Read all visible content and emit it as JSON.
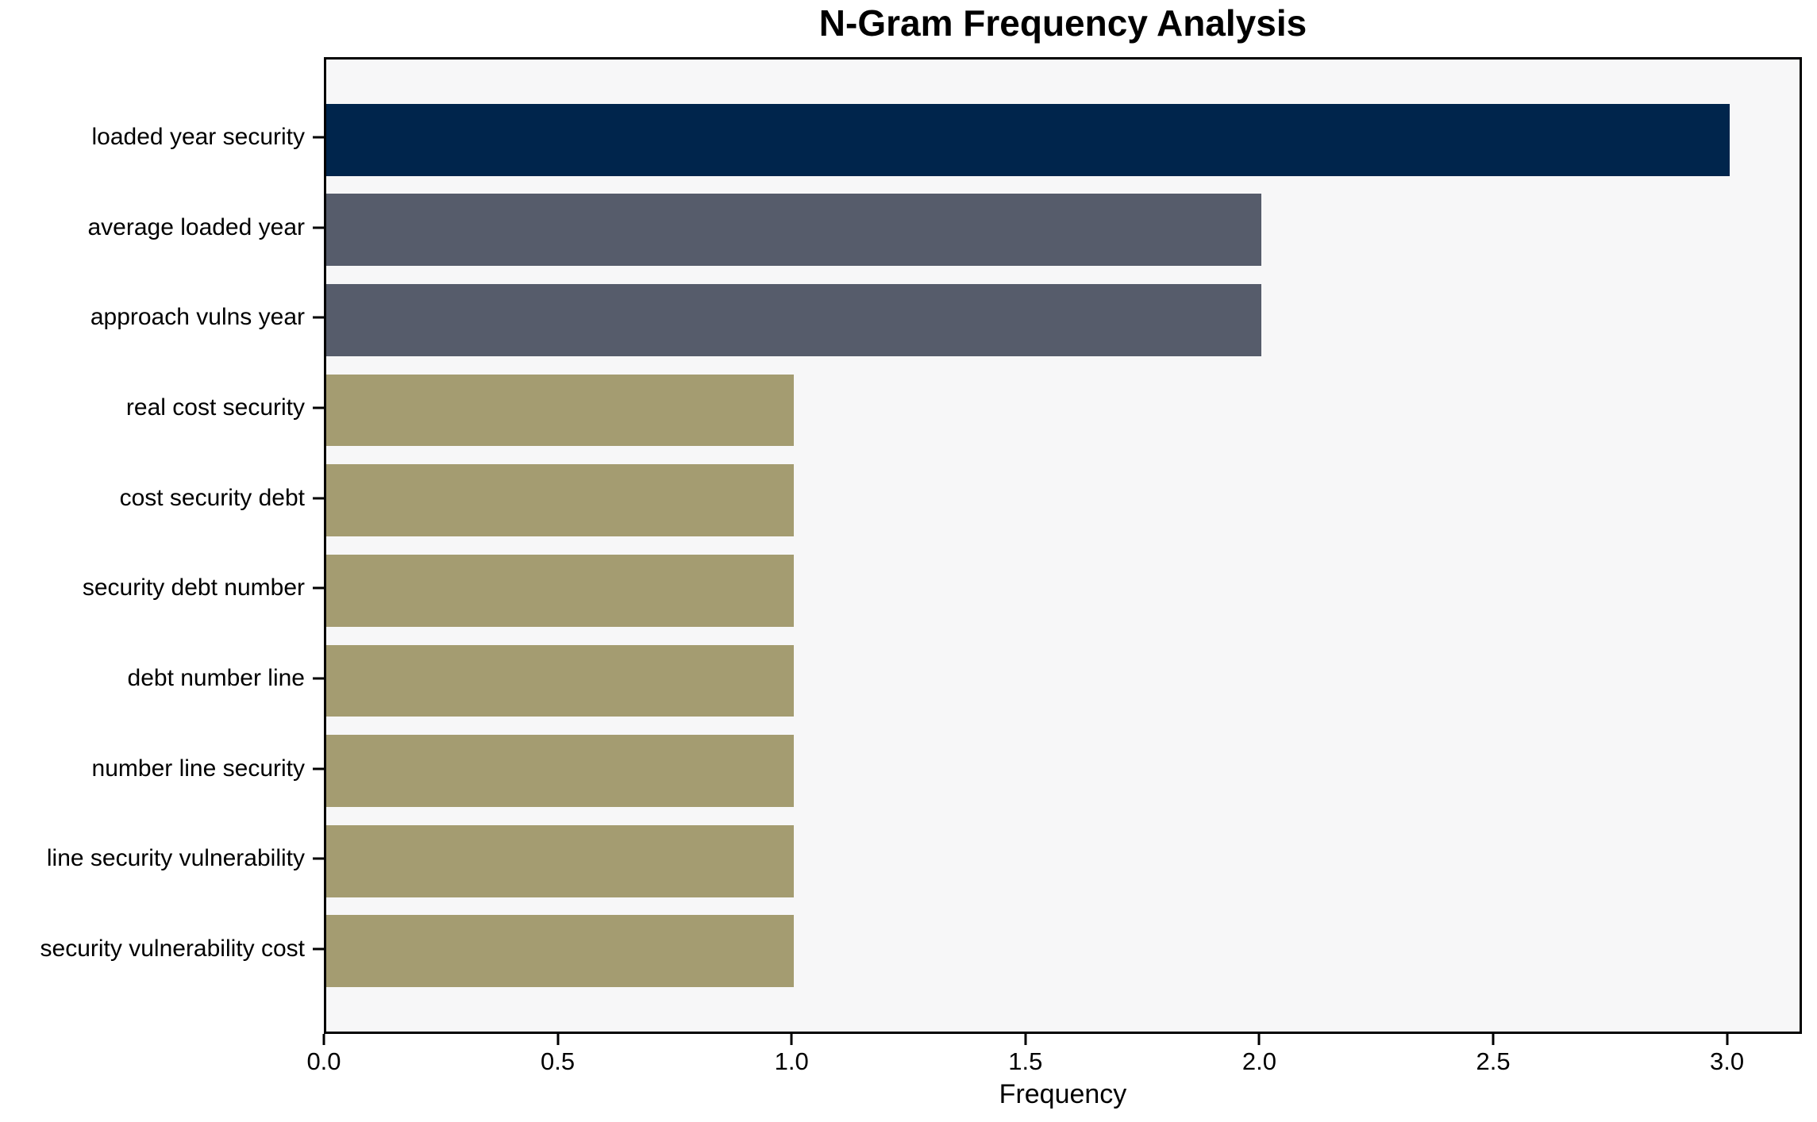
{
  "chart_data": {
    "type": "bar",
    "orientation": "horizontal",
    "title": "N-Gram Frequency Analysis",
    "xlabel": "Frequency",
    "ylabel": "",
    "categories": [
      "loaded year security",
      "average loaded year",
      "approach vulns year",
      "real cost security",
      "cost security debt",
      "security debt number",
      "debt number line",
      "number line security",
      "line security vulnerability",
      "security vulnerability cost"
    ],
    "values": [
      3,
      2,
      2,
      1,
      1,
      1,
      1,
      1,
      1,
      1
    ],
    "bar_colors": [
      "#00254c",
      "#565c6b",
      "#565c6b",
      "#a49c71",
      "#a49c71",
      "#a49c71",
      "#a49c71",
      "#a49c71",
      "#a49c71",
      "#a49c71"
    ],
    "x_ticks": [
      {
        "value": 0,
        "label": "0.0"
      },
      {
        "value": 0.5,
        "label": "0.5"
      },
      {
        "value": 1,
        "label": "1.0"
      },
      {
        "value": 1.5,
        "label": "1.5"
      },
      {
        "value": 2,
        "label": "2.0"
      },
      {
        "value": 2.5,
        "label": "2.5"
      },
      {
        "value": 3,
        "label": "3.0"
      }
    ],
    "xlim": [
      0,
      3.15
    ],
    "bar_height_fraction": 0.8,
    "y_margin_fraction": 0.05,
    "grid": false,
    "legend": false,
    "plot_background": "#f7f7f8",
    "figure_background": "#ffffff",
    "axis_color": "#000000",
    "text_color": "#000000"
  }
}
